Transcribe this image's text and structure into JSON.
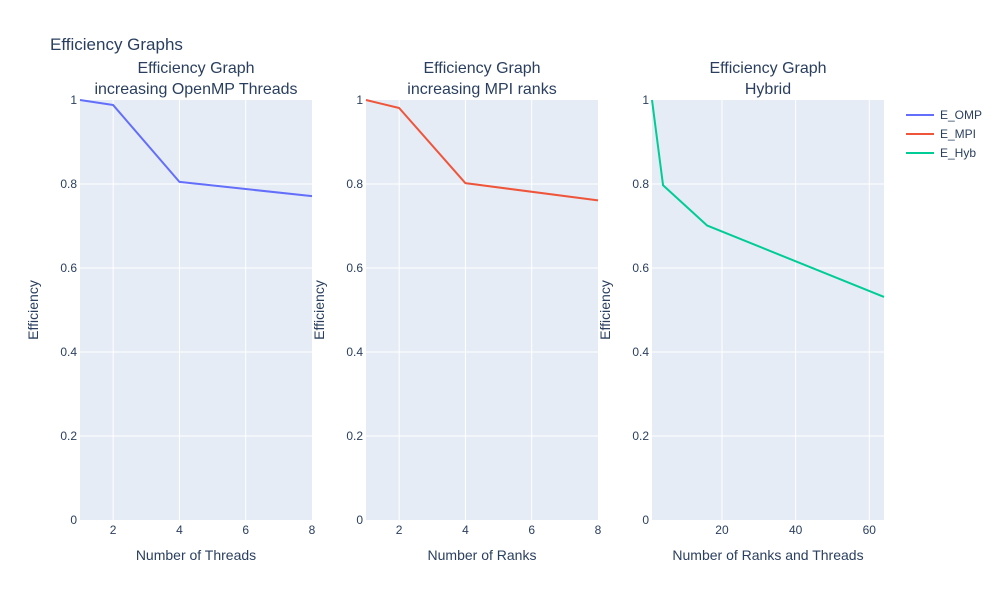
{
  "figure": {
    "title": "Efficiency Graphs"
  },
  "chart_data": [
    {
      "type": "line",
      "title_lines": [
        "Efficiency Graph",
        "increasing OpenMP Threads"
      ],
      "xlabel": "Number of Threads",
      "ylabel": "Efficiency",
      "xlim": [
        1,
        8
      ],
      "ylim": [
        0,
        1
      ],
      "xticks": [
        2,
        4,
        6,
        8
      ],
      "yticks": [
        0,
        0.2,
        0.4,
        0.6,
        0.8,
        1
      ],
      "ytick_labels": [
        "0",
        "0.2",
        "0.4",
        "0.6",
        "0.8",
        "1"
      ],
      "grid": true,
      "series": [
        {
          "name": "E_OMP",
          "color": "#636efa",
          "x": [
            1,
            2,
            4,
            8
          ],
          "y": [
            1.0,
            0.988,
            0.805,
            0.771
          ]
        }
      ]
    },
    {
      "type": "line",
      "title_lines": [
        "Efficiency Graph",
        "increasing MPI ranks"
      ],
      "xlabel": "Number of Ranks",
      "ylabel": "Efficiency",
      "xlim": [
        1,
        8
      ],
      "ylim": [
        0,
        1
      ],
      "xticks": [
        2,
        4,
        6,
        8
      ],
      "yticks": [
        0,
        0.2,
        0.4,
        0.6,
        0.8,
        1
      ],
      "ytick_labels": [
        "0",
        "0.2",
        "0.4",
        "0.6",
        "0.8",
        "1"
      ],
      "grid": true,
      "series": [
        {
          "name": "E_MPI",
          "color": "#ef553b",
          "x": [
            1,
            2,
            4,
            8
          ],
          "y": [
            1.0,
            0.981,
            0.802,
            0.761
          ]
        }
      ]
    },
    {
      "type": "line",
      "title_lines": [
        "Efficiency Graph",
        "Hybrid"
      ],
      "xlabel": "Number of Ranks and Threads",
      "ylabel": "Efficiency",
      "xlim": [
        1,
        64
      ],
      "ylim": [
        0,
        1
      ],
      "xticks": [
        20,
        40,
        60
      ],
      "yticks": [
        0,
        0.2,
        0.4,
        0.6,
        0.8,
        1
      ],
      "ytick_labels": [
        "0",
        "0.2",
        "0.4",
        "0.6",
        "0.8",
        "1"
      ],
      "grid": true,
      "series": [
        {
          "name": "E_Hyb",
          "color": "#00cc96",
          "x": [
            1,
            4,
            16,
            64
          ],
          "y": [
            1.0,
            0.797,
            0.701,
            0.531
          ]
        }
      ]
    }
  ],
  "legend": {
    "placement": "top-right",
    "items": [
      {
        "name": "E_OMP",
        "color": "#636efa"
      },
      {
        "name": "E_MPI",
        "color": "#ef553b"
      },
      {
        "name": "E_Hyb",
        "color": "#00cc96"
      }
    ]
  },
  "colors": {
    "plot_bg": "#e5ecf6",
    "grid": "#ffffff",
    "text": "#2a3f5f"
  }
}
